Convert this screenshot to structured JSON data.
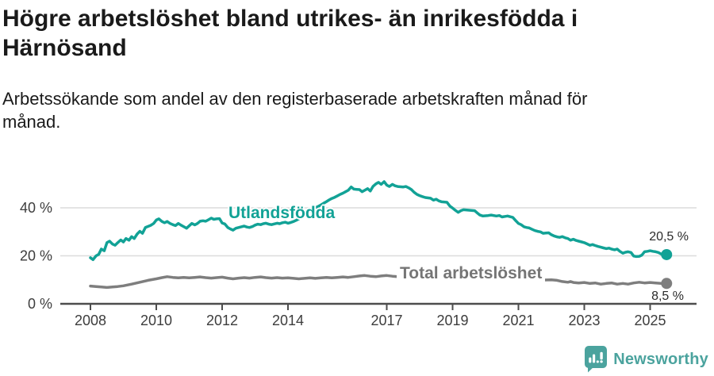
{
  "chart_data": {
    "type": "line",
    "title": "Högre arbetslöshet bland utrikes- än inrikesfödda i Härnösand",
    "subtitle": "Arbetssökande som andel av den registerbaserade arbetskraften månad för månad.",
    "x_tick_years": [
      2008,
      2010,
      2012,
      2014,
      2017,
      2019,
      2021,
      2023,
      2025
    ],
    "y_ticks": [
      {
        "value": 0,
        "label": "0 %"
      },
      {
        "value": 20,
        "label": "20 %"
      },
      {
        "value": 40,
        "label": "40 %"
      }
    ],
    "x_range": [
      2008,
      2025.6
    ],
    "y_range": [
      0,
      52
    ],
    "grid": "horizontal",
    "legend_position": "inline-labels",
    "axis_color": "#4d4d4d",
    "grid_color": "#dcdcdc",
    "tick_label_color": "#3d3d3d",
    "series": [
      {
        "name": "Utlandsfödda",
        "color": "#12a296",
        "end_value_label": "20,5 %",
        "end_value": 20.5,
        "points": [
          [
            2008.0,
            19.2
          ],
          [
            2008.08,
            18.4
          ],
          [
            2008.17,
            20.0
          ],
          [
            2008.25,
            20.6
          ],
          [
            2008.33,
            22.8
          ],
          [
            2008.42,
            22.1
          ],
          [
            2008.5,
            25.5
          ],
          [
            2008.58,
            26.1
          ],
          [
            2008.67,
            24.9
          ],
          [
            2008.75,
            24.4
          ],
          [
            2008.83,
            25.5
          ],
          [
            2008.92,
            26.6
          ],
          [
            2009.0,
            25.8
          ],
          [
            2009.08,
            27.2
          ],
          [
            2009.17,
            26.5
          ],
          [
            2009.25,
            28.0
          ],
          [
            2009.33,
            27.2
          ],
          [
            2009.42,
            29.1
          ],
          [
            2009.5,
            30.2
          ],
          [
            2009.58,
            29.4
          ],
          [
            2009.67,
            31.8
          ],
          [
            2009.83,
            32.7
          ],
          [
            2009.92,
            33.5
          ],
          [
            2010.0,
            34.9
          ],
          [
            2010.08,
            35.4
          ],
          [
            2010.17,
            34.3
          ],
          [
            2010.25,
            33.8
          ],
          [
            2010.33,
            34.3
          ],
          [
            2010.42,
            33.5
          ],
          [
            2010.5,
            33.0
          ],
          [
            2010.58,
            32.6
          ],
          [
            2010.67,
            33.5
          ],
          [
            2010.75,
            32.8
          ],
          [
            2010.83,
            32.2
          ],
          [
            2010.92,
            31.5
          ],
          [
            2011.0,
            32.5
          ],
          [
            2011.08,
            33.5
          ],
          [
            2011.17,
            32.9
          ],
          [
            2011.25,
            33.5
          ],
          [
            2011.33,
            34.4
          ],
          [
            2011.42,
            34.6
          ],
          [
            2011.5,
            34.4
          ],
          [
            2011.58,
            35.0
          ],
          [
            2011.67,
            35.7
          ],
          [
            2011.75,
            35.2
          ],
          [
            2011.83,
            35.4
          ],
          [
            2011.92,
            35.5
          ],
          [
            2012.0,
            33.7
          ],
          [
            2012.08,
            33.3
          ],
          [
            2012.17,
            31.8
          ],
          [
            2012.25,
            31.2
          ],
          [
            2012.33,
            30.7
          ],
          [
            2012.42,
            31.5
          ],
          [
            2012.5,
            31.8
          ],
          [
            2012.58,
            32.1
          ],
          [
            2012.67,
            32.4
          ],
          [
            2012.75,
            32.0
          ],
          [
            2012.83,
            31.8
          ],
          [
            2012.92,
            32.2
          ],
          [
            2013.0,
            32.8
          ],
          [
            2013.08,
            33.2
          ],
          [
            2013.17,
            33.0
          ],
          [
            2013.25,
            33.4
          ],
          [
            2013.33,
            33.6
          ],
          [
            2013.42,
            33.2
          ],
          [
            2013.5,
            33.0
          ],
          [
            2013.58,
            33.3
          ],
          [
            2013.67,
            33.6
          ],
          [
            2013.75,
            33.4
          ],
          [
            2013.83,
            33.8
          ],
          [
            2013.92,
            34.0
          ],
          [
            2014.0,
            33.6
          ],
          [
            2014.08,
            33.9
          ],
          [
            2014.17,
            34.3
          ],
          [
            2014.25,
            34.8
          ],
          [
            2014.33,
            35.4
          ],
          [
            2014.42,
            36.2
          ],
          [
            2014.5,
            37.0
          ],
          [
            2014.58,
            37.8
          ],
          [
            2014.67,
            38.6
          ],
          [
            2014.75,
            39.4
          ],
          [
            2014.83,
            40.1
          ],
          [
            2014.92,
            40.6
          ],
          [
            2015.0,
            41.2
          ],
          [
            2015.08,
            41.9
          ],
          [
            2015.17,
            42.6
          ],
          [
            2015.25,
            43.3
          ],
          [
            2015.33,
            43.9
          ],
          [
            2015.42,
            44.4
          ],
          [
            2015.5,
            45.0
          ],
          [
            2015.58,
            45.6
          ],
          [
            2015.67,
            46.1
          ],
          [
            2015.75,
            46.7
          ],
          [
            2015.83,
            47.3
          ],
          [
            2015.92,
            48.7
          ],
          [
            2016.0,
            47.8
          ],
          [
            2016.08,
            47.7
          ],
          [
            2016.17,
            47.6
          ],
          [
            2016.25,
            46.7
          ],
          [
            2016.33,
            47.3
          ],
          [
            2016.42,
            48.0
          ],
          [
            2016.5,
            47.0
          ],
          [
            2016.58,
            48.9
          ],
          [
            2016.67,
            50.0
          ],
          [
            2016.75,
            50.6
          ],
          [
            2016.83,
            49.8
          ],
          [
            2016.92,
            50.9
          ],
          [
            2017.0,
            49.5
          ],
          [
            2017.08,
            48.9
          ],
          [
            2017.17,
            49.8
          ],
          [
            2017.25,
            49.2
          ],
          [
            2017.33,
            48.9
          ],
          [
            2017.5,
            48.7
          ],
          [
            2017.58,
            48.9
          ],
          [
            2017.67,
            48.3
          ],
          [
            2017.75,
            47.6
          ],
          [
            2017.83,
            46.5
          ],
          [
            2017.92,
            45.6
          ],
          [
            2018.0,
            45.1
          ],
          [
            2018.08,
            44.7
          ],
          [
            2018.17,
            44.3
          ],
          [
            2018.33,
            44.0
          ],
          [
            2018.42,
            43.2
          ],
          [
            2018.5,
            43.6
          ],
          [
            2018.58,
            42.9
          ],
          [
            2018.67,
            42.5
          ],
          [
            2018.83,
            42.3
          ],
          [
            2018.92,
            40.7
          ],
          [
            2019.0,
            39.9
          ],
          [
            2019.08,
            39.0
          ],
          [
            2019.17,
            38.1
          ],
          [
            2019.25,
            38.8
          ],
          [
            2019.33,
            39.2
          ],
          [
            2019.5,
            39.0
          ],
          [
            2019.67,
            38.8
          ],
          [
            2019.75,
            37.9
          ],
          [
            2019.83,
            37.0
          ],
          [
            2019.92,
            36.6
          ],
          [
            2020.08,
            36.8
          ],
          [
            2020.17,
            37.0
          ],
          [
            2020.33,
            36.6
          ],
          [
            2020.42,
            36.8
          ],
          [
            2020.5,
            36.2
          ],
          [
            2020.67,
            36.6
          ],
          [
            2020.83,
            36.0
          ],
          [
            2020.92,
            34.6
          ],
          [
            2021.0,
            33.5
          ],
          [
            2021.08,
            33.0
          ],
          [
            2021.17,
            32.1
          ],
          [
            2021.25,
            31.8
          ],
          [
            2021.33,
            31.6
          ],
          [
            2021.42,
            31.0
          ],
          [
            2021.5,
            30.5
          ],
          [
            2021.58,
            30.2
          ],
          [
            2021.67,
            30.0
          ],
          [
            2021.75,
            29.4
          ],
          [
            2021.83,
            29.5
          ],
          [
            2021.92,
            29.6
          ],
          [
            2022.0,
            28.8
          ],
          [
            2022.08,
            28.3
          ],
          [
            2022.17,
            27.9
          ],
          [
            2022.25,
            27.7
          ],
          [
            2022.33,
            28.0
          ],
          [
            2022.42,
            27.5
          ],
          [
            2022.5,
            27.2
          ],
          [
            2022.58,
            26.5
          ],
          [
            2022.67,
            26.9
          ],
          [
            2022.75,
            26.4
          ],
          [
            2022.83,
            26.1
          ],
          [
            2022.92,
            25.8
          ],
          [
            2023.0,
            25.5
          ],
          [
            2023.08,
            25.0
          ],
          [
            2023.17,
            24.4
          ],
          [
            2023.25,
            24.7
          ],
          [
            2023.33,
            24.3
          ],
          [
            2023.42,
            23.9
          ],
          [
            2023.5,
            23.6
          ],
          [
            2023.58,
            23.3
          ],
          [
            2023.67,
            23.0
          ],
          [
            2023.75,
            23.2
          ],
          [
            2023.83,
            22.8
          ],
          [
            2023.92,
            22.5
          ],
          [
            2024.0,
            22.8
          ],
          [
            2024.08,
            21.9
          ],
          [
            2024.17,
            21.1
          ],
          [
            2024.25,
            21.5
          ],
          [
            2024.33,
            21.7
          ],
          [
            2024.42,
            21.4
          ],
          [
            2024.5,
            19.9
          ],
          [
            2024.58,
            19.7
          ],
          [
            2024.67,
            19.8
          ],
          [
            2024.75,
            20.3
          ],
          [
            2024.83,
            21.7
          ],
          [
            2024.92,
            21.9
          ],
          [
            2025.0,
            22.1
          ],
          [
            2025.08,
            21.9
          ],
          [
            2025.17,
            21.7
          ],
          [
            2025.25,
            21.4
          ],
          [
            2025.33,
            20.8
          ],
          [
            2025.42,
            20.2
          ],
          [
            2025.5,
            20.5
          ]
        ]
      },
      {
        "name": "Total arbetslöshet",
        "color": "#7e7e7e",
        "end_value_label": "8,5 %",
        "end_value": 8.5,
        "points": [
          [
            2008.0,
            7.4
          ],
          [
            2008.17,
            7.2
          ],
          [
            2008.33,
            7.0
          ],
          [
            2008.5,
            6.8
          ],
          [
            2008.67,
            7.0
          ],
          [
            2008.83,
            7.2
          ],
          [
            2009.0,
            7.5
          ],
          [
            2009.25,
            8.2
          ],
          [
            2009.5,
            9.0
          ],
          [
            2009.75,
            9.8
          ],
          [
            2010.0,
            10.4
          ],
          [
            2010.17,
            10.9
          ],
          [
            2010.33,
            11.3
          ],
          [
            2010.5,
            11.0
          ],
          [
            2010.67,
            10.8
          ],
          [
            2010.83,
            11.0
          ],
          [
            2011.0,
            10.8
          ],
          [
            2011.17,
            11.0
          ],
          [
            2011.33,
            11.2
          ],
          [
            2011.5,
            10.9
          ],
          [
            2011.67,
            10.7
          ],
          [
            2011.83,
            10.9
          ],
          [
            2012.0,
            11.1
          ],
          [
            2012.17,
            10.7
          ],
          [
            2012.33,
            10.4
          ],
          [
            2012.5,
            10.7
          ],
          [
            2012.67,
            10.9
          ],
          [
            2012.83,
            10.7
          ],
          [
            2013.0,
            11.0
          ],
          [
            2013.17,
            11.2
          ],
          [
            2013.33,
            10.9
          ],
          [
            2013.5,
            10.7
          ],
          [
            2013.67,
            10.9
          ],
          [
            2013.83,
            10.7
          ],
          [
            2014.0,
            10.8
          ],
          [
            2014.17,
            10.6
          ],
          [
            2014.33,
            10.4
          ],
          [
            2014.5,
            10.6
          ],
          [
            2014.67,
            10.8
          ],
          [
            2014.83,
            10.6
          ],
          [
            2015.0,
            10.8
          ],
          [
            2015.17,
            11.0
          ],
          [
            2015.33,
            10.8
          ],
          [
            2015.5,
            11.0
          ],
          [
            2015.67,
            11.2
          ],
          [
            2015.83,
            11.0
          ],
          [
            2016.0,
            11.3
          ],
          [
            2016.17,
            11.6
          ],
          [
            2016.33,
            11.8
          ],
          [
            2016.5,
            11.5
          ],
          [
            2016.67,
            11.3
          ],
          [
            2016.83,
            11.6
          ],
          [
            2017.0,
            11.8
          ],
          [
            2017.17,
            11.5
          ],
          [
            2017.33,
            11.3
          ],
          [
            2017.5,
            11.4
          ],
          [
            2017.67,
            11.2
          ],
          [
            2017.83,
            11.0
          ],
          [
            2018.0,
            11.0
          ],
          [
            2018.33,
            10.8
          ],
          [
            2018.67,
            10.6
          ],
          [
            2019.0,
            10.5
          ],
          [
            2019.33,
            10.4
          ],
          [
            2019.67,
            10.4
          ],
          [
            2020.0,
            10.6
          ],
          [
            2020.33,
            10.5
          ],
          [
            2020.67,
            10.3
          ],
          [
            2021.0,
            10.2
          ],
          [
            2021.33,
            10.0
          ],
          [
            2021.67,
            9.9
          ],
          [
            2022.0,
            10.0
          ],
          [
            2022.17,
            9.8
          ],
          [
            2022.33,
            9.3
          ],
          [
            2022.5,
            9.0
          ],
          [
            2022.58,
            9.3
          ],
          [
            2022.67,
            8.9
          ],
          [
            2022.83,
            8.7
          ],
          [
            2023.0,
            8.9
          ],
          [
            2023.17,
            8.5
          ],
          [
            2023.33,
            8.7
          ],
          [
            2023.5,
            8.2
          ],
          [
            2023.67,
            8.5
          ],
          [
            2023.83,
            8.7
          ],
          [
            2024.0,
            8.2
          ],
          [
            2024.17,
            8.5
          ],
          [
            2024.33,
            8.2
          ],
          [
            2024.5,
            8.7
          ],
          [
            2024.67,
            9.0
          ],
          [
            2024.83,
            8.7
          ],
          [
            2025.0,
            8.9
          ],
          [
            2025.17,
            8.7
          ],
          [
            2025.33,
            8.5
          ],
          [
            2025.5,
            8.5
          ]
        ]
      }
    ]
  },
  "branding": {
    "logo_text": "Newsworthy",
    "logo_color": "#4ba39e",
    "logo_icon": "newsworthy-pin-barchart-icon"
  }
}
